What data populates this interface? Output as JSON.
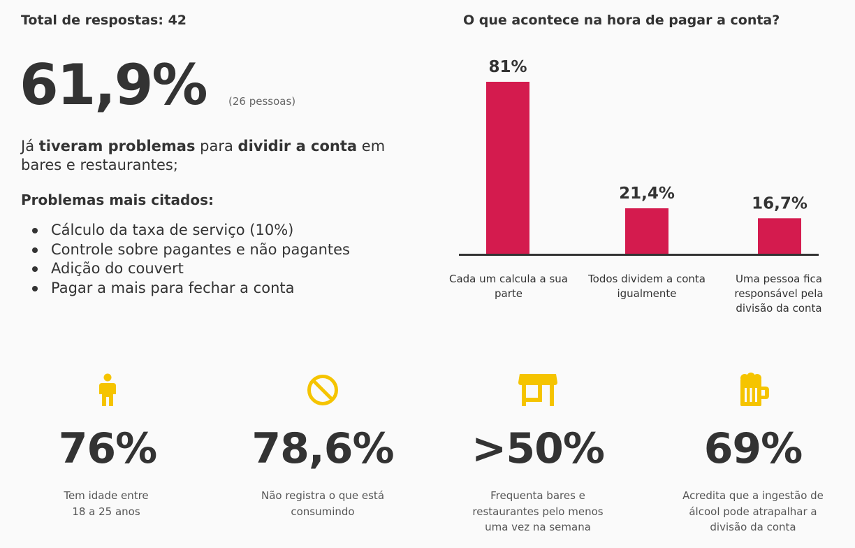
{
  "summary": {
    "total_label": "Total de respostas: 42",
    "big_value": "61,9%",
    "big_note": "(26 pessoas)",
    "problems_text": {
      "p1": "Já ",
      "b1": "tiveram problemas",
      "p2": " para ",
      "b2": "dividir a conta",
      "p3": " em bares e restaurantes;"
    },
    "list_title": "Problemas mais citados:",
    "list_items": [
      "Cálculo da taxa de serviço (10%)",
      "Controle sobre pagantes e não pagantes",
      "Adição do couvert",
      "Pagar a mais para fechar a conta"
    ]
  },
  "chart_data": {
    "type": "bar",
    "title": "O que acontece na hora de pagar a conta?",
    "categories": [
      "Cada um calcula a sua parte",
      "Todos dividem a conta igualmente",
      "Uma pessoa fica responsável pela divisão da conta"
    ],
    "values": [
      81,
      21.4,
      16.7
    ],
    "value_labels": [
      "81%",
      "21,4%",
      "16,7%"
    ],
    "ylim": [
      0,
      81
    ],
    "grid": false,
    "bar_color": "#d41b4e"
  },
  "stats": [
    {
      "icon": "person-icon",
      "value": "76%",
      "desc_lines": [
        "Tem idade entre",
        "18 a 25 anos"
      ]
    },
    {
      "icon": "prohibited-icon",
      "value": "78,6%",
      "desc_lines": [
        "Não registra o que está",
        "consumindo"
      ]
    },
    {
      "icon": "storefront-icon",
      "value": ">50%",
      "desc_lines": [
        "Frequenta bares e",
        "restaurantes pelo menos",
        "uma vez na semana"
      ]
    },
    {
      "icon": "beer-mug-icon",
      "value": "69%",
      "desc_lines": [
        "Acredita que a ingestão de",
        "álcool pode atrapalhar a",
        "divisão da conta"
      ]
    }
  ],
  "colors": {
    "accent": "#d41b4e",
    "icon": "#f5c400",
    "text": "#333333",
    "background": "#fafafa"
  }
}
